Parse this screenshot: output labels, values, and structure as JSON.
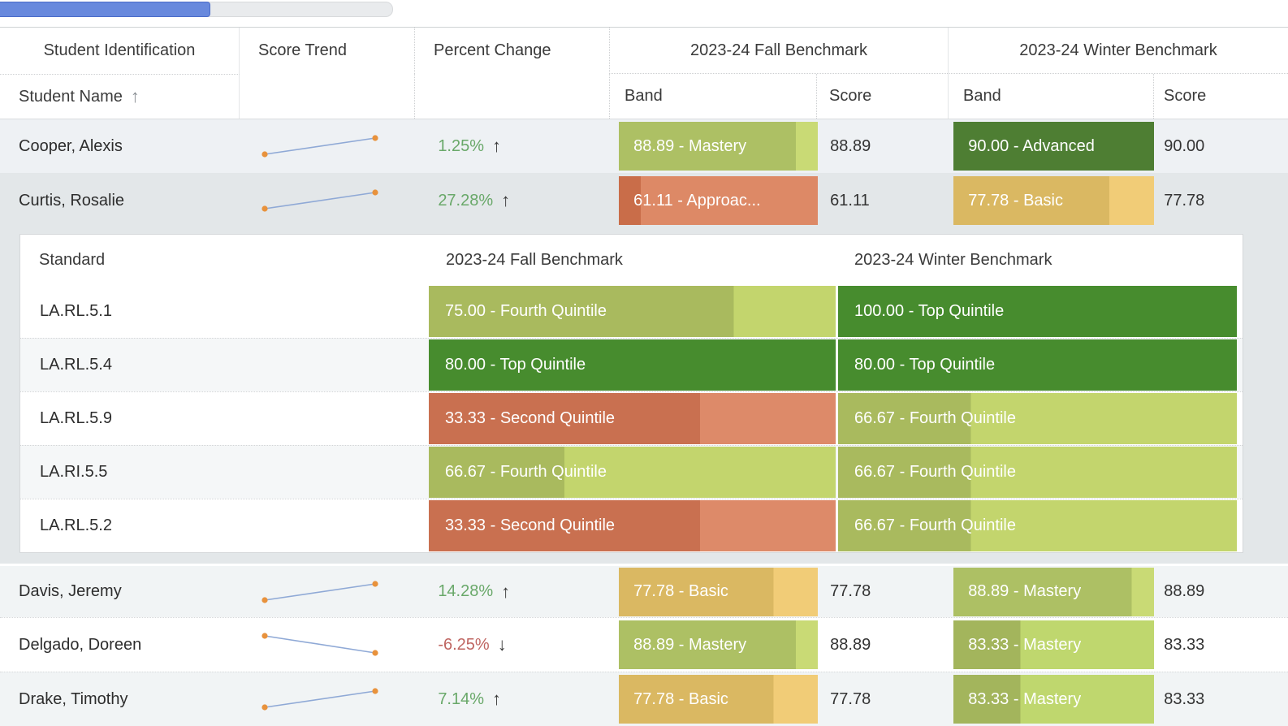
{
  "scrollbar": {
    "thumb_color": "#6889dd",
    "track_color": "#e9ebed"
  },
  "colors": {
    "trend_line": "#8fa9d6",
    "trend_dot": "#e8923c",
    "percent_up_green": "#69a869",
    "percent_down_red": "#bf6561",
    "arrow_dark": "#3b3b3b"
  },
  "header": {
    "student_identification": "Student Identification",
    "student_name": "Student Name",
    "sort_icon": "arrow-up",
    "score_trend": "Score Trend",
    "percent_change": "Percent Change",
    "fall_benchmark": "2023-24 Fall Benchmark",
    "winter_benchmark": "2023-24 Winter Benchmark",
    "band": "Band",
    "score": "Score"
  },
  "students": [
    {
      "name": "Cooper, Alexis",
      "trend": "up",
      "percent_change": "1.25%",
      "direction": "up",
      "shade": "tint2",
      "fall": {
        "band_label": "88.89 - Mastery",
        "score": "88.89",
        "color": "#adc064",
        "color_light": "#c9da75",
        "fill": 88.9
      },
      "winter": {
        "band_label": "90.00 - Advanced",
        "score": "90.00",
        "color": "#4e7e33",
        "color_light": "#4e7e33",
        "fill": 100
      }
    },
    {
      "name": "Curtis, Rosalie",
      "trend": "up",
      "percent_change": "27.28%",
      "direction": "up",
      "shade": "selected",
      "expanded": true,
      "fall": {
        "band_label": "61.11 - Approac...",
        "score": "61.11",
        "color": "#c96d49",
        "color_light": "#dd8966",
        "fill": 11.1
      },
      "winter": {
        "band_label": "77.78 - Basic",
        "score": "77.78",
        "color": "#dab862",
        "color_light": "#f1cc77",
        "fill": 77.8
      }
    },
    {
      "name": "Davis, Jeremy",
      "trend": "up",
      "percent_change": "14.28%",
      "direction": "up",
      "shade": "tint",
      "fall": {
        "band_label": "77.78 - Basic",
        "score": "77.78",
        "color": "#dab862",
        "color_light": "#f1cc77",
        "fill": 77.8
      },
      "winter": {
        "band_label": "88.89 - Mastery",
        "score": "88.89",
        "color": "#adc064",
        "color_light": "#c9da75",
        "fill": 88.9
      }
    },
    {
      "name": "Delgado, Doreen",
      "trend": "down",
      "percent_change": "-6.25%",
      "direction": "down",
      "shade": "white",
      "fall": {
        "band_label": "88.89 - Mastery",
        "score": "88.89",
        "color": "#adc064",
        "color_light": "#c9da75",
        "fill": 88.9
      },
      "winter": {
        "band_label": "83.33 - Mastery",
        "score": "83.33",
        "color": "#a3b55c",
        "color_light": "#bfd76e",
        "fill": 33.3
      }
    },
    {
      "name": "Drake, Timothy",
      "trend": "up",
      "percent_change": "7.14%",
      "direction": "up",
      "shade": "tint",
      "fall": {
        "band_label": "77.78 - Basic",
        "score": "77.78",
        "color": "#dab862",
        "color_light": "#f1cc77",
        "fill": 77.8
      },
      "winter": {
        "band_label": "83.33 - Mastery",
        "score": "83.33",
        "color": "#a3b55c",
        "color_light": "#bfd76e",
        "fill": 33.3
      }
    }
  ],
  "expanded_panel": {
    "header": {
      "standard": "Standard",
      "fall": "2023-24 Fall Benchmark",
      "winter": "2023-24 Winter Benchmark"
    },
    "rows": [
      {
        "standard": "LA.RL.5.1",
        "fall": {
          "label": "75.00 - Fourth Quintile",
          "color": "#a9ba5e",
          "color_light": "#c3d56d",
          "fill": 75
        },
        "winter": {
          "label": "100.00 - Top Quintile",
          "color": "#478c2e",
          "color_light": "#478c2e",
          "fill": 100
        }
      },
      {
        "standard": "LA.RL.5.4",
        "fall": {
          "label": "80.00 - Top Quintile",
          "color": "#478c2e",
          "color_light": "#478c2e",
          "fill": 100
        },
        "winter": {
          "label": "80.00 - Top Quintile",
          "color": "#478c2e",
          "color_light": "#478c2e",
          "fill": 100
        }
      },
      {
        "standard": "LA.RL.5.9",
        "fall": {
          "label": "33.33 - Second Quintile",
          "color": "#c97050",
          "color_light": "#dd8a69",
          "fill": 66.7
        },
        "winter": {
          "label": "66.67 - Fourth Quintile",
          "color": "#a9ba5e",
          "color_light": "#c3d56d",
          "fill": 33.3
        }
      },
      {
        "standard": "LA.RI.5.5",
        "fall": {
          "label": "66.67 - Fourth Quintile",
          "color": "#a9ba5e",
          "color_light": "#c3d56d",
          "fill": 33.3
        },
        "winter": {
          "label": "66.67 - Fourth Quintile",
          "color": "#a9ba5e",
          "color_light": "#c3d56d",
          "fill": 33.3
        }
      },
      {
        "standard": "LA.RL.5.2",
        "fall": {
          "label": "33.33 - Second Quintile",
          "color": "#c97050",
          "color_light": "#dd8a69",
          "fill": 66.7
        },
        "winter": {
          "label": "66.67 - Fourth Quintile",
          "color": "#a9ba5e",
          "color_light": "#c3d56d",
          "fill": 33.3
        }
      }
    ]
  }
}
